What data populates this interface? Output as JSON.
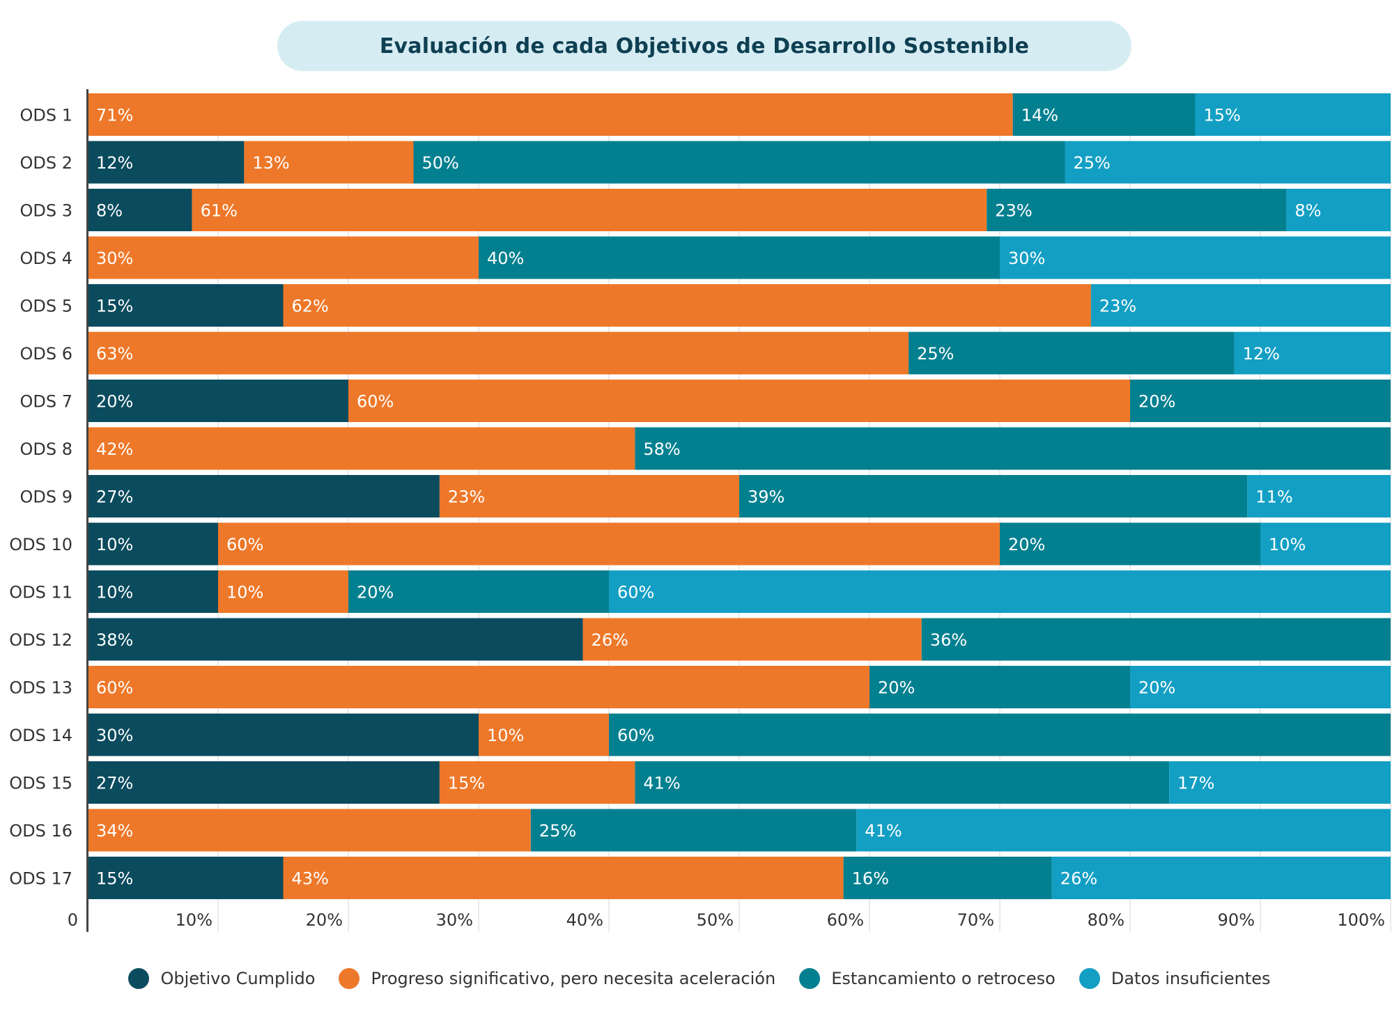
{
  "chart_data": {
    "type": "bar",
    "orientation": "horizontal-stacked-100",
    "title": "Evaluación de cada Objetivos de Desarrollo Sostenible",
    "categories": [
      "ODS 1",
      "ODS 2",
      "ODS 3",
      "ODS 4",
      "ODS 5",
      "ODS 6",
      "ODS 7",
      "ODS 8",
      "ODS 9",
      "ODS 10",
      "ODS 11",
      "ODS 12",
      "ODS 13",
      "ODS 14",
      "ODS 15",
      "ODS 16",
      "ODS 17"
    ],
    "series": [
      {
        "name": "Objetivo Cumplido",
        "color": "#0b4b5e",
        "values": [
          0,
          12,
          8,
          0,
          15,
          0,
          20,
          0,
          27,
          10,
          10,
          38,
          0,
          30,
          27,
          0,
          15
        ]
      },
      {
        "name": "Progreso significativo, pero necesita aceleración",
        "color": "#ee7829",
        "values": [
          71,
          13,
          61,
          30,
          62,
          63,
          60,
          42,
          23,
          60,
          10,
          26,
          60,
          10,
          15,
          34,
          43
        ]
      },
      {
        "name": "Estancamiento o retroceso",
        "color": "#038090",
        "values": [
          14,
          50,
          23,
          40,
          0,
          25,
          20,
          58,
          39,
          20,
          20,
          36,
          20,
          60,
          41,
          25,
          16
        ]
      },
      {
        "name": "Datos insuficientes",
        "color": "#139fc4",
        "values": [
          15,
          25,
          8,
          30,
          23,
          12,
          0,
          0,
          11,
          10,
          60,
          0,
          20,
          0,
          17,
          41,
          26
        ]
      }
    ],
    "x_ticks": [
      "0",
      "10%",
      "20%",
      "30%",
      "40%",
      "50%",
      "60%",
      "70%",
      "80%",
      "90%",
      "100%"
    ],
    "xlim": [
      0,
      100
    ],
    "grid": true,
    "legend_position": "bottom"
  }
}
